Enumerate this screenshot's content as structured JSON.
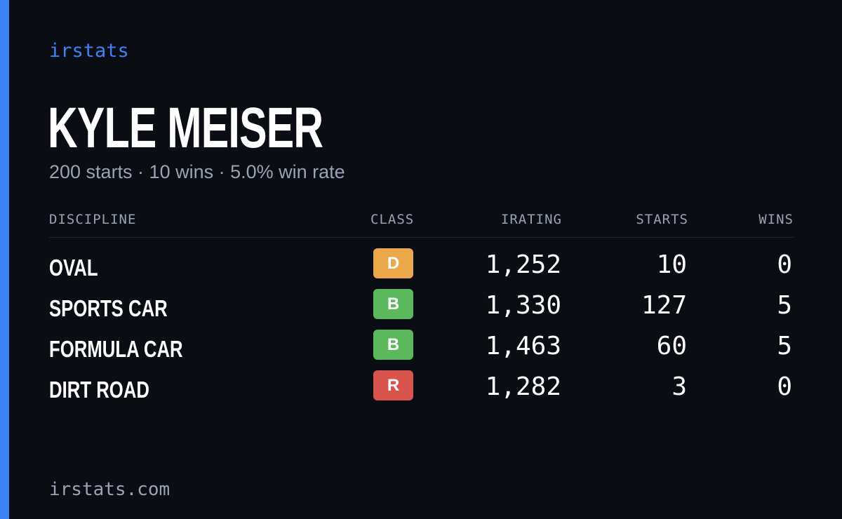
{
  "brand": "irstats",
  "player": {
    "name": "KYLE MEISER",
    "summary": "200 starts · 10 wins · 5.0% win rate"
  },
  "table": {
    "headers": {
      "discipline": "DISCIPLINE",
      "class": "CLASS",
      "irating": "IRATING",
      "starts": "STARTS",
      "wins": "WINS"
    },
    "rows": [
      {
        "discipline": "OVAL",
        "class": "D",
        "class_color": "#eaa84b",
        "irating": "1,252",
        "starts": "10",
        "wins": "0"
      },
      {
        "discipline": "SPORTS CAR",
        "class": "B",
        "class_color": "#5cb85c",
        "irating": "1,330",
        "starts": "127",
        "wins": "5"
      },
      {
        "discipline": "FORMULA CAR",
        "class": "B",
        "class_color": "#5cb85c",
        "irating": "1,463",
        "starts": "60",
        "wins": "5"
      },
      {
        "discipline": "DIRT ROAD",
        "class": "R",
        "class_color": "#d9534f",
        "irating": "1,282",
        "starts": "3",
        "wins": "0"
      }
    ]
  },
  "footer": "irstats.com",
  "colors": {
    "background": "#0a0d14",
    "accent": "#3b82f6",
    "muted_text": "#9aa3b5"
  }
}
